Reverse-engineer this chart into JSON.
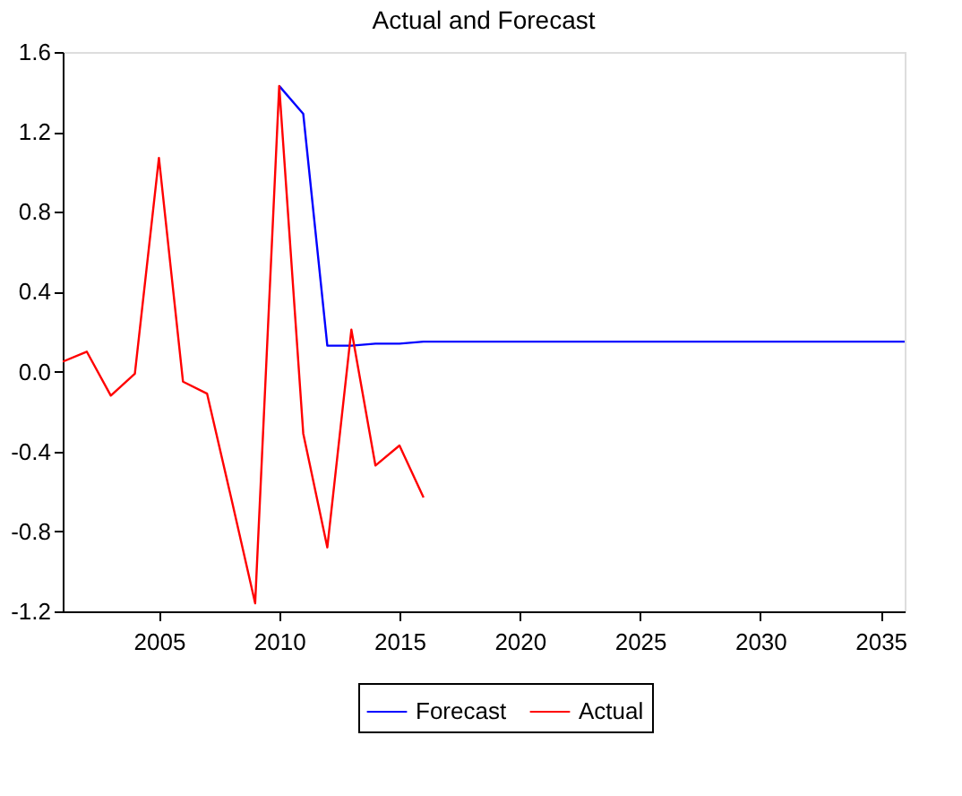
{
  "chart_data": {
    "type": "line",
    "title": "Actual and Forecast",
    "x": [
      2001,
      2002,
      2003,
      2004,
      2005,
      2006,
      2007,
      2008,
      2009,
      2010,
      2011,
      2012,
      2013,
      2014,
      2015,
      2016
    ],
    "series": [
      {
        "name": "Forecast",
        "color": "#0000ff",
        "x": [
          2010,
          2011,
          2012,
          2013,
          2014,
          2015,
          2016,
          2020,
          2025,
          2030,
          2036
        ],
        "values": [
          1.43,
          1.29,
          0.13,
          0.13,
          0.14,
          0.14,
          0.15,
          0.15,
          0.15,
          0.15,
          0.15
        ]
      },
      {
        "name": "Actual",
        "color": "#ff0000",
        "values": [
          0.05,
          0.1,
          -0.12,
          -0.01,
          1.07,
          -0.05,
          -0.11,
          -0.63,
          -1.16,
          1.43,
          -0.31,
          -0.88,
          0.21,
          -0.47,
          -0.37,
          -0.63
        ]
      }
    ],
    "xlim": [
      2001,
      2036
    ],
    "xticks": [
      2005,
      2010,
      2015,
      2020,
      2025,
      2030,
      2035
    ],
    "ylim": [
      -1.2,
      1.6
    ],
    "yticks": [
      {
        "value": -1.2,
        "label": "-1.2"
      },
      {
        "value": -0.8,
        "label": "-0.8"
      },
      {
        "value": -0.4,
        "label": "-0.4"
      },
      {
        "value": 0,
        "label": "0.0"
      },
      {
        "value": 0.4,
        "label": "0.4"
      },
      {
        "value": 0.8,
        "label": "0.8"
      },
      {
        "value": 1.2,
        "label": "1.2"
      },
      {
        "value": 1.6,
        "label": "1.6"
      }
    ],
    "grid": false,
    "legend": "bottom",
    "marker": "none",
    "line_style": "solid"
  }
}
